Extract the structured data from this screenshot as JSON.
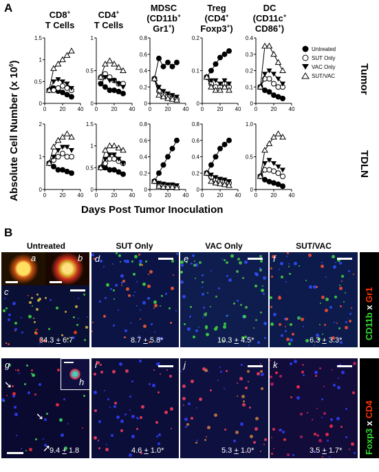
{
  "panelA": {
    "letter": "A",
    "yaxis_title": "Absolute Cell Number (x 10",
    "yaxis_sup": "6",
    "yaxis_close": ")",
    "xaxis_title": "Days Post Tumor Inoculation",
    "row_labels": [
      "Tumor",
      "TDLN"
    ],
    "columns": [
      {
        "line1": "CD8",
        "sup1": "+",
        "line2": "T Cells",
        "sup2": ""
      },
      {
        "line1": "CD4",
        "sup1": "+",
        "line2": "T Cells",
        "sup2": ""
      },
      {
        "line1": "MDSC",
        "sup1": "",
        "line2": "(CD11b",
        "sup2": "+",
        "line3": "Gr1",
        "sup3": "+",
        "close3": ")"
      },
      {
        "line1": "Treg",
        "sup1": "",
        "line2": "(CD4",
        "sup2": "+",
        "line3": "Foxp3",
        "sup3": "+",
        "close3": ")"
      },
      {
        "line1": "DC",
        "sup1": "",
        "line2": "(CD11c",
        "sup2": "+",
        "line3": "CD86",
        "sup3": "+",
        "close3": ")"
      }
    ],
    "legend": [
      "Untreated",
      "SUT Only",
      "VAC Only",
      "SUT/VAC"
    ]
  },
  "chart_data": [
    {
      "type": "line",
      "name": "CD8+ Tumor",
      "x": [
        5,
        10,
        15,
        20,
        25,
        30
      ],
      "ylim": [
        0,
        1.5
      ],
      "yticks": [
        "0",
        "0.5",
        "1",
        "1.5"
      ],
      "xticks": [
        "0",
        "20",
        "40"
      ],
      "series": [
        {
          "name": "Untreated",
          "values": [
            0.3,
            0.35,
            0.28,
            0.25,
            0.2,
            0.15
          ]
        },
        {
          "name": "SUT Only",
          "values": [
            0.3,
            0.3,
            0.35,
            0.4,
            0.35,
            0.3
          ]
        },
        {
          "name": "VAC Only",
          "values": [
            0.3,
            0.5,
            0.55,
            0.5,
            0.45,
            0.35
          ]
        },
        {
          "name": "SUT/VAC",
          "values": [
            0.3,
            0.8,
            0.9,
            1.0,
            1.1,
            1.2
          ]
        }
      ]
    },
    {
      "type": "line",
      "name": "CD4+ Tumor",
      "x": [
        5,
        10,
        15,
        20,
        25,
        30
      ],
      "ylim": [
        0,
        1
      ],
      "yticks": [
        "0",
        "0.5",
        "1"
      ],
      "xticks": [
        "0",
        "20",
        "40"
      ],
      "series": [
        {
          "name": "Untreated",
          "values": [
            0.3,
            0.25,
            0.2,
            0.2,
            0.18,
            0.15
          ]
        },
        {
          "name": "SUT Only",
          "values": [
            0.4,
            0.45,
            0.4,
            0.35,
            0.3,
            0.3
          ]
        },
        {
          "name": "VAC Only",
          "values": [
            0.3,
            0.4,
            0.35,
            0.35,
            0.3,
            0.25
          ]
        },
        {
          "name": "SUT/VAC",
          "values": [
            0.4,
            0.6,
            0.65,
            0.6,
            0.55,
            0.5
          ]
        }
      ]
    },
    {
      "type": "line",
      "name": "MDSC Tumor",
      "x": [
        5,
        10,
        15,
        20,
        25,
        30
      ],
      "ylim": [
        0,
        0.8
      ],
      "yticks": [
        "0",
        "0.2",
        "0.4",
        "0.6",
        "0.8"
      ],
      "xticks": [
        "0",
        "20",
        "40"
      ],
      "series": [
        {
          "name": "Untreated",
          "values": [
            0.3,
            0.55,
            0.45,
            0.5,
            0.45,
            0.5
          ]
        },
        {
          "name": "SUT Only",
          "values": [
            0.3,
            0.15,
            0.1,
            0.08,
            0.06,
            0.05
          ]
        },
        {
          "name": "VAC Only",
          "values": [
            0.3,
            0.2,
            0.15,
            0.12,
            0.1,
            0.08
          ]
        },
        {
          "name": "SUT/VAC",
          "values": [
            0.3,
            0.1,
            0.08,
            0.06,
            0.05,
            0.04
          ]
        }
      ]
    },
    {
      "type": "line",
      "name": "Treg Tumor",
      "x": [
        5,
        10,
        15,
        20,
        25,
        30
      ],
      "ylim": [
        0,
        0.2
      ],
      "yticks": [
        "0",
        "0.1",
        "0.2"
      ],
      "xticks": [
        "0",
        "20",
        "40"
      ],
      "series": [
        {
          "name": "Untreated",
          "values": [
            0.08,
            0.1,
            0.12,
            0.14,
            0.15,
            0.16
          ]
        },
        {
          "name": "SUT Only",
          "values": [
            0.08,
            0.06,
            0.05,
            0.05,
            0.06,
            0.05
          ]
        },
        {
          "name": "VAC Only",
          "values": [
            0.08,
            0.07,
            0.07,
            0.06,
            0.07,
            0.06
          ]
        },
        {
          "name": "SUT/VAC",
          "values": [
            0.08,
            0.05,
            0.04,
            0.04,
            0.05,
            0.04
          ]
        }
      ]
    },
    {
      "type": "line",
      "name": "DC Tumor",
      "x": [
        5,
        10,
        15,
        20,
        25,
        30
      ],
      "ylim": [
        0,
        0.4
      ],
      "yticks": [
        "0",
        "0.1",
        "0.2",
        "0.3",
        "0.4"
      ],
      "xticks": [
        "0",
        "20",
        "40"
      ],
      "series": [
        {
          "name": "Untreated",
          "values": [
            0.1,
            0.08,
            0.07,
            0.05,
            0.04,
            0.03
          ]
        },
        {
          "name": "SUT Only",
          "values": [
            0.1,
            0.15,
            0.15,
            0.12,
            0.1,
            0.1
          ]
        },
        {
          "name": "VAC Only",
          "values": [
            0.1,
            0.18,
            0.2,
            0.18,
            0.15,
            0.12
          ]
        },
        {
          "name": "SUT/VAC",
          "values": [
            0.1,
            0.35,
            0.35,
            0.3,
            0.25,
            0.2
          ]
        }
      ]
    },
    {
      "type": "line",
      "name": "CD8+ TDLN",
      "x": [
        5,
        10,
        15,
        20,
        25,
        30
      ],
      "ylim": [
        0,
        2
      ],
      "yticks": [
        "0",
        "1",
        "2"
      ],
      "xticks": [
        "0",
        "20",
        "40"
      ],
      "series": [
        {
          "name": "Untreated",
          "values": [
            0.8,
            0.7,
            0.6,
            0.6,
            0.55,
            0.5
          ]
        },
        {
          "name": "SUT Only",
          "values": [
            0.8,
            0.9,
            1.0,
            1.1,
            1.0,
            1.0
          ]
        },
        {
          "name": "VAC Only",
          "values": [
            0.8,
            1.0,
            1.2,
            1.3,
            1.3,
            1.2
          ]
        },
        {
          "name": "SUT/VAC",
          "values": [
            0.8,
            1.3,
            1.5,
            1.6,
            1.7,
            1.6
          ]
        }
      ]
    },
    {
      "type": "line",
      "name": "CD4+ TDLN",
      "x": [
        5,
        10,
        15,
        20,
        25,
        30
      ],
      "ylim": [
        0,
        1.5
      ],
      "yticks": [
        "0",
        "0.5",
        "1",
        "1.5"
      ],
      "xticks": [
        "0",
        "20",
        "40"
      ],
      "series": [
        {
          "name": "Untreated",
          "values": [
            0.5,
            0.5,
            0.45,
            0.45,
            0.4,
            0.35
          ]
        },
        {
          "name": "SUT Only",
          "values": [
            0.5,
            0.6,
            0.7,
            0.7,
            0.65,
            0.6
          ]
        },
        {
          "name": "VAC Only",
          "values": [
            0.5,
            0.7,
            0.8,
            0.8,
            0.7,
            0.6
          ]
        },
        {
          "name": "SUT/VAC",
          "values": [
            0.5,
            0.9,
            1.0,
            1.0,
            0.95,
            0.9
          ]
        }
      ]
    },
    {
      "type": "line",
      "name": "MDSC TDLN",
      "x": [
        5,
        10,
        15,
        20,
        25,
        30
      ],
      "ylim": [
        0,
        0.8
      ],
      "yticks": [
        "0",
        "0.2",
        "0.4",
        "0.6",
        "0.8"
      ],
      "xticks": [
        "0",
        "20",
        "40"
      ],
      "series": [
        {
          "name": "Untreated",
          "values": [
            0.1,
            0.2,
            0.3,
            0.4,
            0.5,
            0.6
          ]
        },
        {
          "name": "SUT Only",
          "values": [
            0.1,
            0.05,
            0.05,
            0.04,
            0.04,
            0.03
          ]
        },
        {
          "name": "VAC Only",
          "values": [
            0.1,
            0.08,
            0.07,
            0.06,
            0.06,
            0.05
          ]
        },
        {
          "name": "SUT/VAC",
          "values": [
            0.1,
            0.04,
            0.03,
            0.03,
            0.03,
            0.02
          ]
        }
      ]
    },
    {
      "type": "line",
      "name": "Treg TDLN",
      "x": [
        5,
        10,
        15,
        20,
        25,
        30
      ],
      "ylim": [
        0,
        0.8
      ],
      "yticks": [
        "0",
        "0.2",
        "0.4",
        "0.6",
        "0.8"
      ],
      "xticks": [
        "0",
        "20",
        "40"
      ],
      "series": [
        {
          "name": "Untreated",
          "values": [
            0.2,
            0.3,
            0.4,
            0.5,
            0.55,
            0.6
          ]
        },
        {
          "name": "SUT Only",
          "values": [
            0.2,
            0.15,
            0.12,
            0.1,
            0.1,
            0.08
          ]
        },
        {
          "name": "VAC Only",
          "values": [
            0.2,
            0.18,
            0.15,
            0.13,
            0.12,
            0.1
          ]
        },
        {
          "name": "SUT/VAC",
          "values": [
            0.2,
            0.1,
            0.08,
            0.07,
            0.06,
            0.05
          ]
        }
      ]
    },
    {
      "type": "line",
      "name": "DC TDLN",
      "x": [
        5,
        10,
        15,
        20,
        25,
        30
      ],
      "ylim": [
        0,
        1.0
      ],
      "yticks": [
        "0",
        "0.5",
        "1.0"
      ],
      "xticks": [
        "0",
        "20",
        "40"
      ],
      "series": [
        {
          "name": "Untreated",
          "values": [
            0.2,
            0.15,
            0.12,
            0.1,
            0.08,
            0.05
          ]
        },
        {
          "name": "SUT Only",
          "values": [
            0.2,
            0.3,
            0.3,
            0.28,
            0.25,
            0.2
          ]
        },
        {
          "name": "VAC Only",
          "values": [
            0.2,
            0.4,
            0.45,
            0.4,
            0.35,
            0.3
          ]
        },
        {
          "name": "SUT/VAC",
          "values": [
            0.2,
            0.6,
            0.7,
            0.8,
            0.85,
            0.8
          ]
        }
      ]
    }
  ],
  "panelB": {
    "letter": "B",
    "columns": [
      "Untreated",
      "SUT Only",
      "VAC Only",
      "SUT/VAC"
    ],
    "stain1": {
      "a": "CD11b",
      "x": " x ",
      "b": "Gr1",
      "color_a": "#33dd33",
      "color_b": "#ff3300"
    },
    "stain2": {
      "a": "Foxp3",
      "x": " x ",
      "b": "CD4",
      "color_a": "#33dd33",
      "color_b": "#ff3300"
    },
    "row1": {
      "labels": [
        "a",
        "b",
        "c",
        "d",
        "e",
        "f"
      ],
      "quant": [
        {
          "v": "34.3",
          "sd": "6.7",
          "star": ""
        },
        {
          "v": "8.7",
          "sd": "5.8",
          "star": "*"
        },
        {
          "v": "10.3",
          "sd": "4.5",
          "star": "*"
        },
        {
          "v": "6.3",
          "sd": "3.3",
          "star": "*"
        }
      ]
    },
    "row2": {
      "labels": [
        "g",
        "h",
        "i",
        "j",
        "k"
      ],
      "quant": [
        {
          "v": "9.4",
          "sd": "1.8",
          "star": ""
        },
        {
          "v": "4.6",
          "sd": "1.0",
          "star": "*"
        },
        {
          "v": "5.3",
          "sd": "1.0",
          "star": "*"
        },
        {
          "v": "3.5",
          "sd": "1.7",
          "star": "*"
        }
      ]
    }
  }
}
